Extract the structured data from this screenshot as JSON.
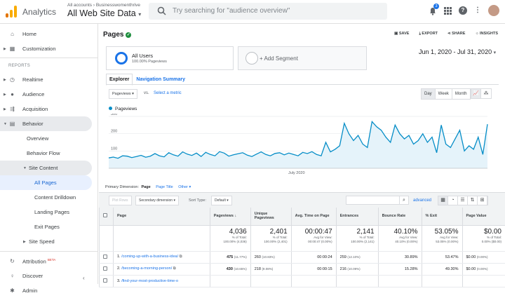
{
  "header": {
    "app_name": "Analytics",
    "breadcrumb": "All accounts › Businesswomenthrive",
    "property": "All Web Site Data",
    "search_placeholder": "Try searching for \"audience overview\"",
    "notification_count": "3"
  },
  "sidebar": {
    "home": "Home",
    "customization": "Customization",
    "reports_heading": "REPORTS",
    "realtime": "Realtime",
    "audience": "Audience",
    "acquisition": "Acquisition",
    "behavior": "Behavior",
    "overview": "Overview",
    "behavior_flow": "Behavior Flow",
    "site_content": "Site Content",
    "all_pages": "All Pages",
    "content_drilldown": "Content Drilldown",
    "landing_pages": "Landing Pages",
    "exit_pages": "Exit Pages",
    "site_speed": "Site Speed",
    "attribution": "Attribution",
    "attribution_badge": "BETA",
    "discover": "Discover",
    "admin": "Admin"
  },
  "page": {
    "title": "Pages",
    "actions": {
      "save": "SAVE",
      "export": "EXPORT",
      "share": "SHARE",
      "insights": "INSIGHTS"
    },
    "segment": {
      "name": "All Users",
      "sub": "100.00% Pageviews",
      "add": "+ Add Segment"
    },
    "date_range": "Jun 1, 2020 - Jul 31, 2020",
    "tabs": {
      "explorer": "Explorer",
      "nav_summary": "Navigation Summary"
    },
    "metric": "Pageviews",
    "vs": "vs.",
    "select_metric": "Select a metric",
    "granularity": {
      "day": "Day",
      "week": "Week",
      "month": "Month",
      "active": "Day"
    },
    "legend": "Pageviews"
  },
  "chart_data": {
    "type": "area",
    "series": [
      {
        "name": "Pageviews",
        "values": [
          60,
          65,
          58,
          72,
          70,
          62,
          68,
          75,
          64,
          70,
          85,
          72,
          66,
          90,
          78,
          70,
          95,
          82,
          74,
          88,
          68,
          92,
          80,
          72,
          96,
          88,
          70,
          78,
          84,
          90,
          76,
          68,
          82,
          95,
          80,
          72,
          86,
          90,
          78,
          88,
          80,
          72,
          92,
          85,
          96,
          80,
          72,
          150,
          95,
          110,
          130,
          260,
          200,
          160,
          190,
          140,
          120,
          270,
          240,
          220,
          180,
          150,
          250,
          200,
          170,
          190,
          140,
          160,
          200,
          150,
          180,
          90,
          250,
          140,
          120,
          170,
          220,
          100,
          130,
          110,
          180,
          80,
          255
        ]
      }
    ],
    "yticks": [
      "300",
      "200",
      "100"
    ],
    "ylim": [
      0,
      300
    ],
    "xlabel": "July 2020",
    "color": "#058dc7"
  },
  "table": {
    "primary_dimension_label": "Primary Dimension:",
    "dim_page": "Page",
    "dim_page_title": "Page Title",
    "dim_other": "Other",
    "plot_rows": "Plot Rows",
    "secondary_dim": "Secondary dimension",
    "sort_type_label": "Sort Type:",
    "sort_default": "Default",
    "advanced": "advanced",
    "headers": [
      "Page",
      "Pageviews",
      "Unique Pageviews",
      "Avg. Time on Page",
      "Entrances",
      "Bounce Rate",
      "% Exit",
      "Page Value"
    ],
    "totals": [
      {
        "big": "4,036",
        "l1": "% of Total:",
        "l2": "100.00% (4,036)"
      },
      {
        "big": "2,401",
        "l1": "% of Total:",
        "l2": "100.00% (2,401)"
      },
      {
        "big": "00:00:47",
        "l1": "Avg for View:",
        "l2": "00:00:47 (0.00%)"
      },
      {
        "big": "2,141",
        "l1": "% of Total:",
        "l2": "100.00% (2,141)"
      },
      {
        "big": "40.10%",
        "l1": "Avg for View:",
        "l2": "40.10% (0.00%)"
      },
      {
        "big": "53.05%",
        "l1": "Avg for View:",
        "l2": "53.05% (0.00%)"
      },
      {
        "big": "$0.00",
        "l1": "% of Total:",
        "l2": "0.00% ($0.00)"
      }
    ],
    "rows": [
      {
        "idx": "1.",
        "page": "/coming-up-with-a-business-idea/",
        "pv": "475",
        "pvp": "(11.77%)",
        "upv": "260",
        "upvp": "(10.83%)",
        "time": "00:00:24",
        "ent": "259",
        "entp": "(12.10%)",
        "bounce": "30.89%",
        "exit": "53.47%",
        "val": "$0.00",
        "valp": "(0.00%)"
      },
      {
        "idx": "2.",
        "page": "/becoming-a-morning-person/",
        "pv": "430",
        "pvp": "(10.65%)",
        "upv": "218",
        "upvp": "(9.08%)",
        "time": "00:00:15",
        "ent": "216",
        "entp": "(10.09%)",
        "bounce": "15.28%",
        "exit": "49.30%",
        "val": "$0.00",
        "valp": "(0.00%)"
      },
      {
        "idx": "3.",
        "page": "/find-your-most-productive-time-o",
        "pv": "",
        "pvp": "",
        "upv": "",
        "upvp": "",
        "time": "",
        "ent": "",
        "entp": "",
        "bounce": "",
        "exit": "",
        "val": "",
        "valp": ""
      }
    ]
  }
}
